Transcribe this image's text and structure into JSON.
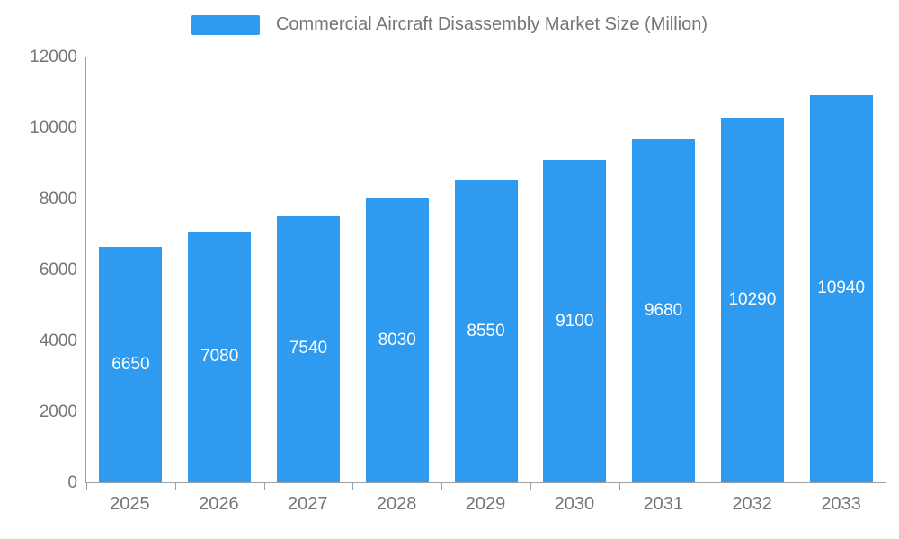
{
  "legend": {
    "title": "Commercial Aircraft Disassembly Market Size (Million)"
  },
  "chart_data": {
    "type": "bar",
    "title": "Commercial Aircraft Disassembly Market Size (Million)",
    "categories": [
      "2025",
      "2026",
      "2027",
      "2028",
      "2029",
      "2030",
      "2031",
      "2032",
      "2033"
    ],
    "values": [
      6650,
      7080,
      7540,
      8030,
      8550,
      9100,
      9680,
      10290,
      10940
    ],
    "xlabel": "",
    "ylabel": "",
    "ylim": [
      0,
      12000
    ],
    "yticks": [
      0,
      2000,
      4000,
      6000,
      8000,
      10000,
      12000
    ],
    "grid": true,
    "legend_position": "top",
    "bar_color": "#2f9bf0",
    "value_label_color": "#ffffff",
    "axis_text_color": "#757575"
  }
}
